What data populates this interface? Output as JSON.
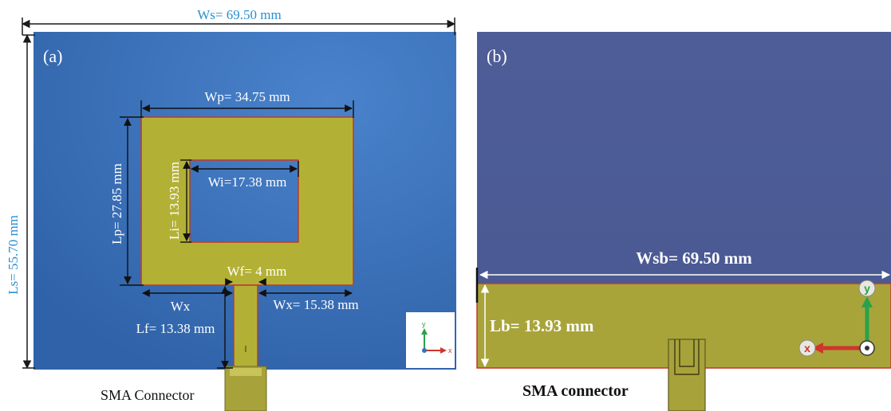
{
  "panel_a": {
    "label": "(a)",
    "ws_dim": "Ws= 69.50 mm",
    "ls_dim": "Ls= 55.70 mm",
    "wp_dim": "Wp= 34.75 mm",
    "lp_dim": "Lp= 27.85 mm",
    "wi_dim": "Wi=17.38 mm",
    "li_dim": "Li= 13.93 mm",
    "wf_dim": "Wf= 4 mm",
    "wx_left": "Wx",
    "wx_right": "Wx= 15.38 mm",
    "lf_dim": "Lf= 13.38 mm",
    "connector_caption": "SMA Connector",
    "axis_y": "y",
    "axis_x": "x"
  },
  "panel_b": {
    "label": "(b)",
    "wsb_dim": "Wsb= 69.50 mm",
    "lb_dim": "Lb= 13.93 mm",
    "connector_caption": "SMA connector",
    "axis_y": "y",
    "axis_x": "x"
  },
  "colors": {
    "substrate_blue": "#3a6fb8",
    "substrate_purple": "#4e5c96",
    "copper_patch": "#b3b135",
    "dimension_cyan": "#2a8fd0",
    "outline_red": "#c0392b"
  }
}
